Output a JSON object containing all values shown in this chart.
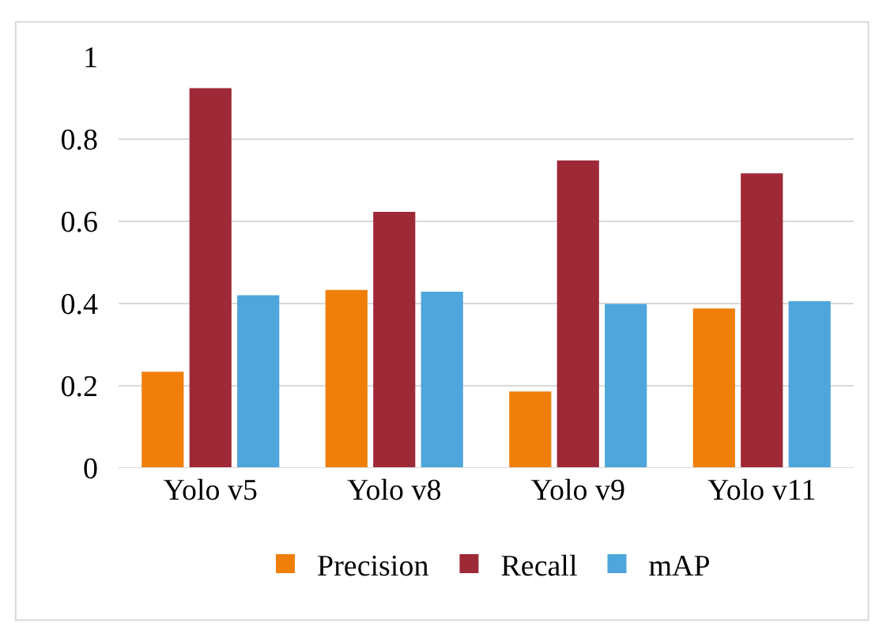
{
  "chart_data": {
    "type": "bar",
    "categories": [
      "Yolo v5",
      "Yolo v8",
      "Yolo v9",
      "Yolo v11"
    ],
    "series": [
      {
        "name": "Precision",
        "color": "#f07f09",
        "values": [
          0.234,
          0.433,
          0.186,
          0.388
        ]
      },
      {
        "name": "Recall",
        "color": "#9e2937",
        "values": [
          0.924,
          0.623,
          0.748,
          0.717
        ]
      },
      {
        "name": "mAP",
        "color": "#4ea6dc",
        "values": [
          0.42,
          0.429,
          0.399,
          0.406
        ]
      }
    ],
    "ylim": [
      0,
      1
    ],
    "yticks": [
      0,
      {
        "value": 0.2,
        "label": "0.2"
      },
      {
        "value": 0.4,
        "label": "0.4"
      },
      {
        "value": 0.6,
        "label": "0.6"
      },
      {
        "value": 0.8,
        "label": "0.8"
      },
      1
    ],
    "grid": "y",
    "legend": "bottom"
  }
}
